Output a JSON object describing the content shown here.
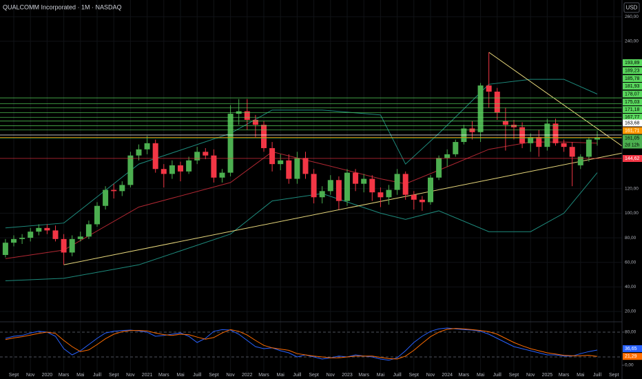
{
  "chart_data": {
    "type": "candlestick",
    "title": "QUALCOMM Incorporated · 1M · NASDAQ",
    "currency": "USD",
    "x_labels": [
      "Sept",
      "Nov",
      "2020",
      "Mars",
      "Mai",
      "Juill",
      "Sept",
      "Nov",
      "2021",
      "Mars",
      "Mai",
      "Juill",
      "Sept",
      "Nov",
      "2022",
      "Mars",
      "Mai",
      "Juill",
      "Sept",
      "Nov",
      "2023",
      "Mars",
      "Mai",
      "Juill",
      "Sept",
      "Nov",
      "2024",
      "Mars",
      "Mai",
      "Juill",
      "Sept",
      "Nov",
      "2025",
      "Mars",
      "Mai",
      "Juill",
      "Sept"
    ],
    "open": [
      66,
      76,
      79,
      80,
      85,
      88,
      86,
      79,
      68,
      79,
      81,
      91,
      106,
      119,
      118,
      123,
      147,
      152,
      157,
      136,
      132,
      139,
      134,
      143,
      150,
      147,
      129,
      133,
      181,
      183,
      176,
      172,
      153,
      140,
      143,
      128,
      145,
      132,
      113,
      118,
      127,
      110,
      133,
      124,
      128,
      117,
      113,
      119,
      132,
      115,
      111,
      109,
      129,
      145,
      148,
      158,
      169,
      166,
      204,
      199,
      175,
      172,
      170,
      157,
      162,
      154,
      173,
      157,
      154,
      139,
      146,
      160
    ],
    "high": [
      79,
      82,
      83,
      88,
      91,
      91,
      90,
      83,
      82,
      85,
      94,
      109,
      122,
      124,
      126,
      150,
      156,
      163,
      160,
      140,
      143,
      142,
      146,
      154,
      153,
      152,
      136,
      188,
      193,
      193,
      180,
      175,
      158,
      148,
      148,
      150,
      150,
      136,
      122,
      131,
      130,
      136,
      136,
      132,
      131,
      121,
      123,
      136,
      134,
      118,
      114,
      131,
      147,
      152,
      160,
      172,
      175,
      206,
      231,
      202,
      186,
      176,
      174,
      165,
      168,
      177,
      177,
      160,
      158,
      148,
      162,
      167
    ],
    "low": [
      64,
      73,
      75,
      77,
      82,
      83,
      77,
      58,
      65,
      77,
      79,
      89,
      103,
      112,
      114,
      121,
      143,
      148,
      133,
      121,
      128,
      126,
      132,
      140,
      144,
      125,
      125,
      130,
      172,
      168,
      162,
      150,
      134,
      135,
      124,
      124,
      128,
      108,
      108,
      115,
      103,
      106,
      118,
      117,
      110,
      105,
      107,
      115,
      111,
      103,
      102,
      107,
      127,
      138,
      146,
      156,
      160,
      158,
      186,
      176,
      151,
      160,
      153,
      150,
      146,
      151,
      155,
      150,
      122,
      136,
      142,
      155
    ],
    "close": [
      76,
      79,
      80,
      85,
      88,
      86,
      79,
      68,
      79,
      81,
      91,
      106,
      119,
      118,
      123,
      147,
      152,
      157,
      136,
      132,
      139,
      134,
      143,
      150,
      147,
      129,
      133,
      181,
      183,
      176,
      172,
      153,
      140,
      143,
      128,
      145,
      132,
      113,
      118,
      127,
      110,
      133,
      124,
      128,
      117,
      113,
      119,
      132,
      115,
      111,
      109,
      129,
      145,
      148,
      158,
      169,
      166,
      204,
      199,
      182,
      172,
      170,
      157,
      162,
      154,
      173,
      157,
      154,
      146,
      146,
      160,
      161.71
    ],
    "up_color": "#4caf50",
    "down_color": "#f23645",
    "ylim": [
      11.6,
      273.6
    ],
    "yticks": [
      {
        "value": 260,
        "label": "260,00"
      },
      {
        "value": 240,
        "label": "240,00"
      },
      {
        "value": 120,
        "label": "120,00"
      },
      {
        "value": 100,
        "label": "100,00"
      },
      {
        "value": 80,
        "label": "80,00"
      },
      {
        "value": 60,
        "label": "60,00"
      },
      {
        "value": 40,
        "label": "40,00"
      },
      {
        "value": 20,
        "label": "20,00"
      }
    ],
    "grid": true,
    "levels": [
      {
        "value": 193.89,
        "label": "193,89",
        "color": "#59d75d"
      },
      {
        "value": 189.23,
        "label": "189,23",
        "color": "#59d75d"
      },
      {
        "value": 185.78,
        "label": "185,78",
        "color": "#59d75d"
      },
      {
        "value": 181.93,
        "label": "181,93",
        "color": "#59d75d"
      },
      {
        "value": 178.07,
        "label": "178,07",
        "color": "#59d75d"
      },
      {
        "value": 175.03,
        "label": "175,03",
        "color": "#59d75d"
      },
      {
        "value": 171.18,
        "label": "171,18",
        "color": "#59d75d"
      },
      {
        "value": 167.77,
        "label": "167,77",
        "color": "#59d75d"
      },
      {
        "value": 163.68,
        "label": "163,68",
        "color": "#ffffff"
      },
      {
        "value": 161.71,
        "label": "161,71",
        "color": "#ff9800"
      },
      {
        "value": 161.05,
        "label": "161,05",
        "sublabel": "2d 12h",
        "color": "#4caf50"
      },
      {
        "value": 144.62,
        "label": "144,62",
        "color": "#f23645"
      }
    ],
    "bollinger": {
      "x": [
        0,
        7,
        16,
        27,
        32,
        38,
        45,
        48,
        52,
        58,
        63,
        67,
        71
      ],
      "upper": [
        88,
        92,
        140,
        165,
        184,
        184,
        180,
        140,
        165,
        205,
        209,
        209,
        197
      ],
      "basis": [
        63,
        70,
        105,
        125,
        150,
        140,
        128,
        124,
        135,
        152,
        158,
        158,
        157
      ],
      "lower": [
        45,
        47,
        58,
        83,
        110,
        116,
        100,
        95,
        102,
        85,
        85,
        100,
        133
      ],
      "band_color": "#1e8c7e",
      "basis_color": "#b22833"
    },
    "trendlines": [
      {
        "x": [
          7,
          74
        ],
        "values": [
          58,
          149
        ],
        "color": "#e8d87c"
      },
      {
        "x": [
          58,
          74
        ],
        "values": [
          231,
          154.6
        ],
        "color": "#e8d87c"
      }
    ],
    "stochastic": {
      "ylim": [
        -16.7,
        103.3
      ],
      "yticks": [
        {
          "value": 80,
          "label": "80,00"
        },
        {
          "value": 0,
          "label": "0,00"
        }
      ],
      "bands": [
        80,
        20
      ],
      "series": [
        {
          "name": "%K",
          "color": "#2962ff",
          "values": [
            65,
            70,
            72,
            78,
            82,
            80,
            70,
            40,
            25,
            35,
            50,
            65,
            78,
            82,
            84,
            85,
            83,
            80,
            70,
            72,
            75,
            78,
            70,
            55,
            65,
            82,
            86,
            85,
            75,
            60,
            45,
            40,
            42,
            35,
            30,
            20,
            25,
            20,
            15,
            18,
            22,
            20,
            25,
            22,
            20,
            15,
            12,
            18,
            35,
            55,
            70,
            82,
            88,
            90,
            88,
            86,
            85,
            82,
            75,
            65,
            55,
            45,
            40,
            35,
            30,
            25,
            25,
            22,
            22,
            28,
            33,
            36.65
          ],
          "last_label": "36,65"
        },
        {
          "name": "%D",
          "color": "#ff6d00",
          "values": [
            62,
            66,
            69,
            73,
            77,
            80,
            77,
            60,
            45,
            33,
            37,
            50,
            64,
            75,
            81,
            84,
            84,
            83,
            78,
            74,
            72,
            75,
            74,
            68,
            63,
            67,
            78,
            86,
            82,
            73,
            60,
            48,
            42,
            39,
            36,
            28,
            25,
            22,
            20,
            18,
            18,
            20,
            22,
            22,
            22,
            19,
            16,
            15,
            22,
            36,
            53,
            69,
            80,
            87,
            89,
            88,
            86,
            84,
            81,
            75,
            65,
            55,
            47,
            40,
            35,
            30,
            27,
            24,
            23,
            23,
            24,
            21.29
          ],
          "last_label": "21,29"
        }
      ]
    }
  }
}
